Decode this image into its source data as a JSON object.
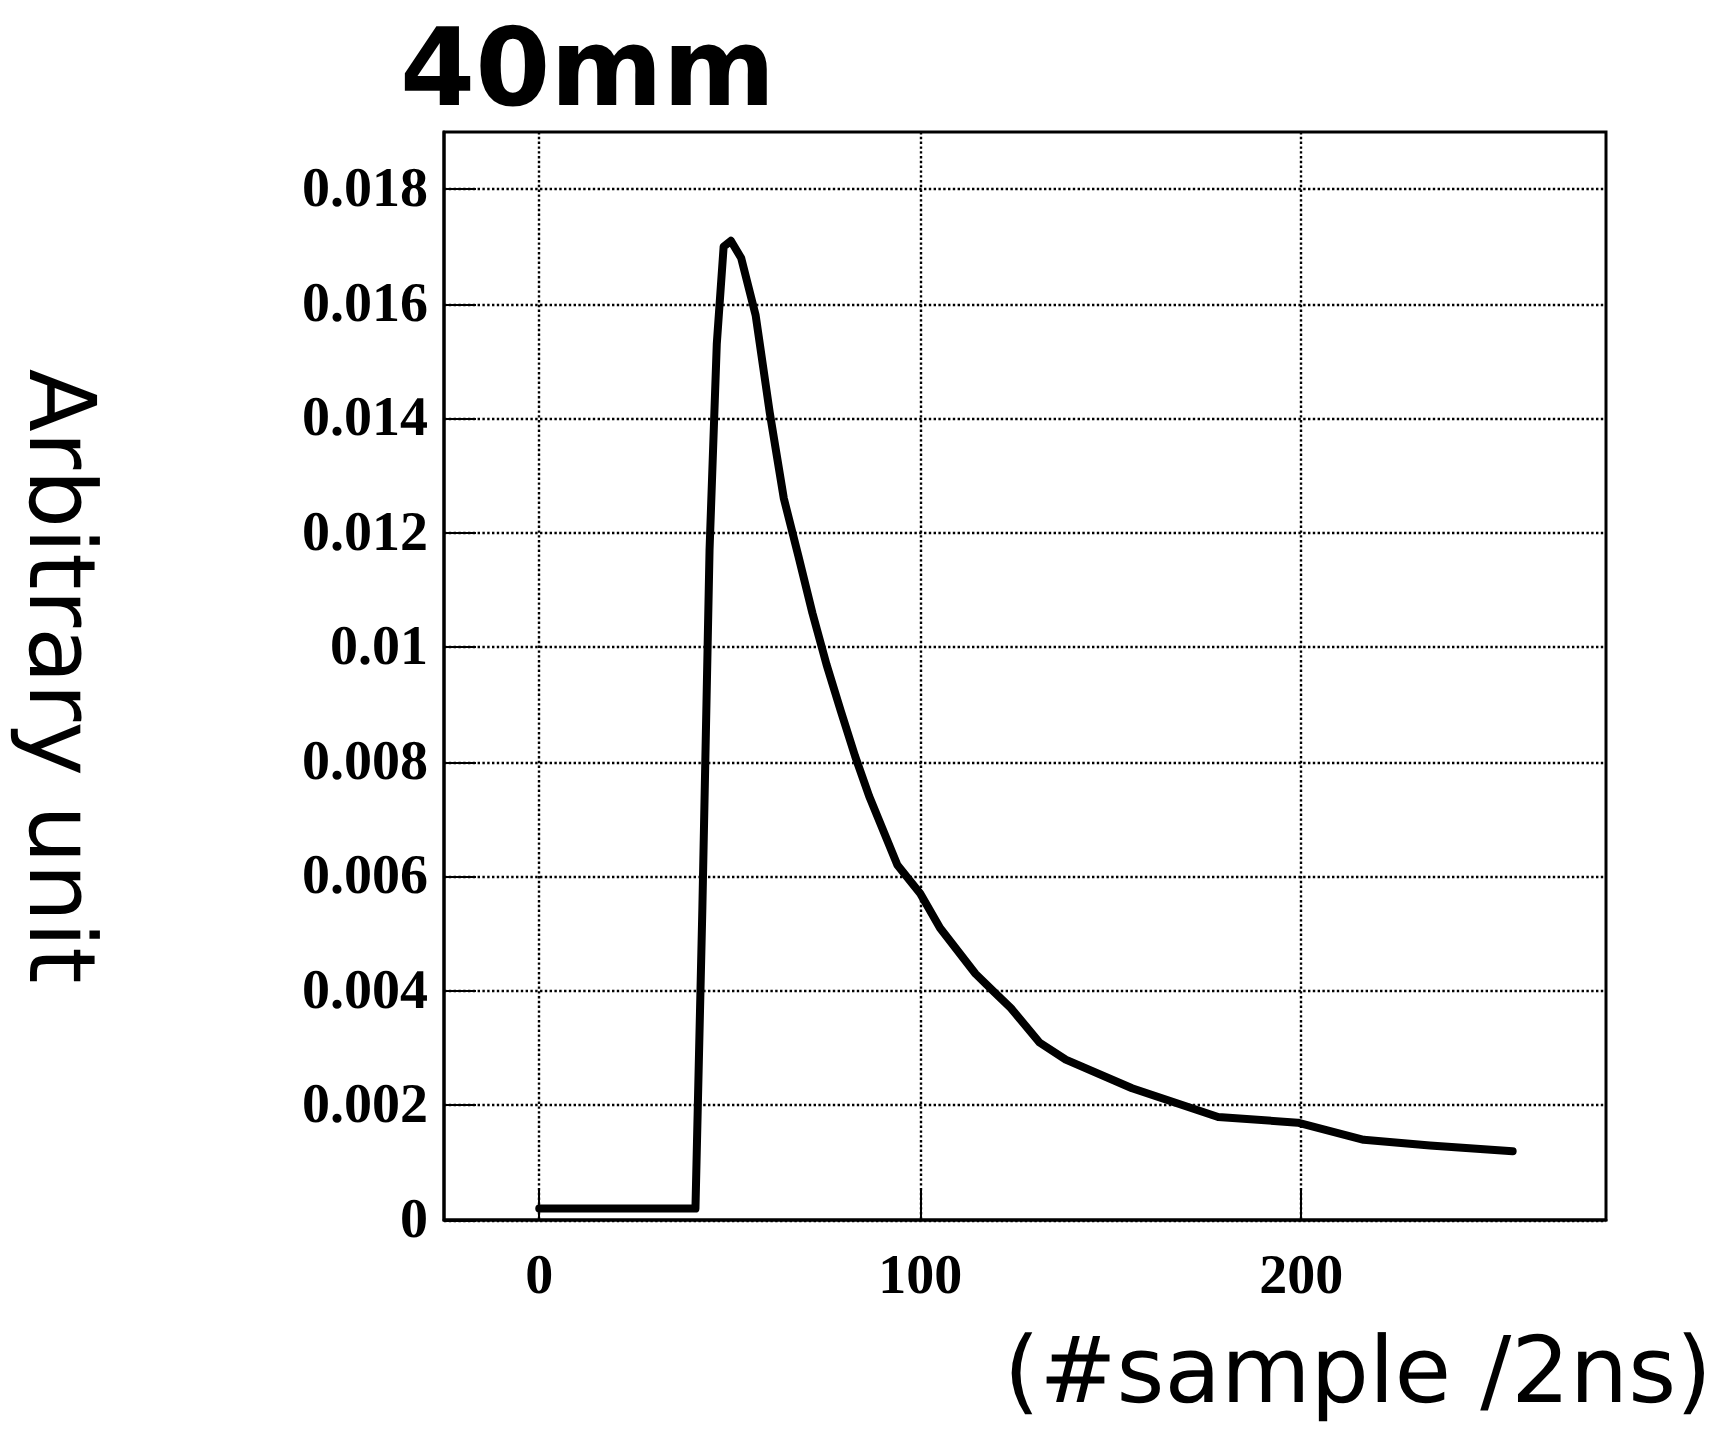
{
  "chart_data": {
    "type": "line",
    "title": "40mm",
    "xlabel": "(#sample /2ns)",
    "ylabel": "Arbitrary unit",
    "x": [
      0,
      40,
      41,
      42.8,
      44.7,
      46.6,
      48.4,
      50.3,
      53,
      56.8,
      60.5,
      64.2,
      68,
      71.7,
      75.4,
      79.1,
      82.9,
      86.6,
      94,
      100,
      105.2,
      114.5,
      119.1,
      123.8,
      131.3,
      138.2,
      155.6,
      178.2,
      199.1,
      216.4,
      233.8,
      255.5
    ],
    "series": [
      {
        "color": "#000000",
        "values": [
          0.0002,
          0.0002,
          0.0002,
          0.0054,
          0.0117,
          0.0153,
          0.017,
          0.0171,
          0.0168,
          0.0158,
          0.0141,
          0.0126,
          0.0116,
          0.0106,
          0.0097,
          0.0089,
          0.0081,
          0.0074,
          0.0062,
          0.0057,
          0.0051,
          0.0043,
          0.004,
          0.0037,
          0.0031,
          0.0028,
          0.0023,
          0.0018,
          0.0017,
          0.0014,
          0.0013,
          0.0012
        ]
      }
    ],
    "xlim": [
      -25,
      280
    ],
    "xticks": [
      0,
      100,
      200
    ],
    "ylim": [
      0,
      0.019
    ],
    "yticks": [
      0,
      0.002,
      0.004,
      0.006,
      0.008,
      0.01,
      0.012,
      0.014,
      0.016,
      0.018
    ],
    "grid": true,
    "line_style": "solid"
  }
}
